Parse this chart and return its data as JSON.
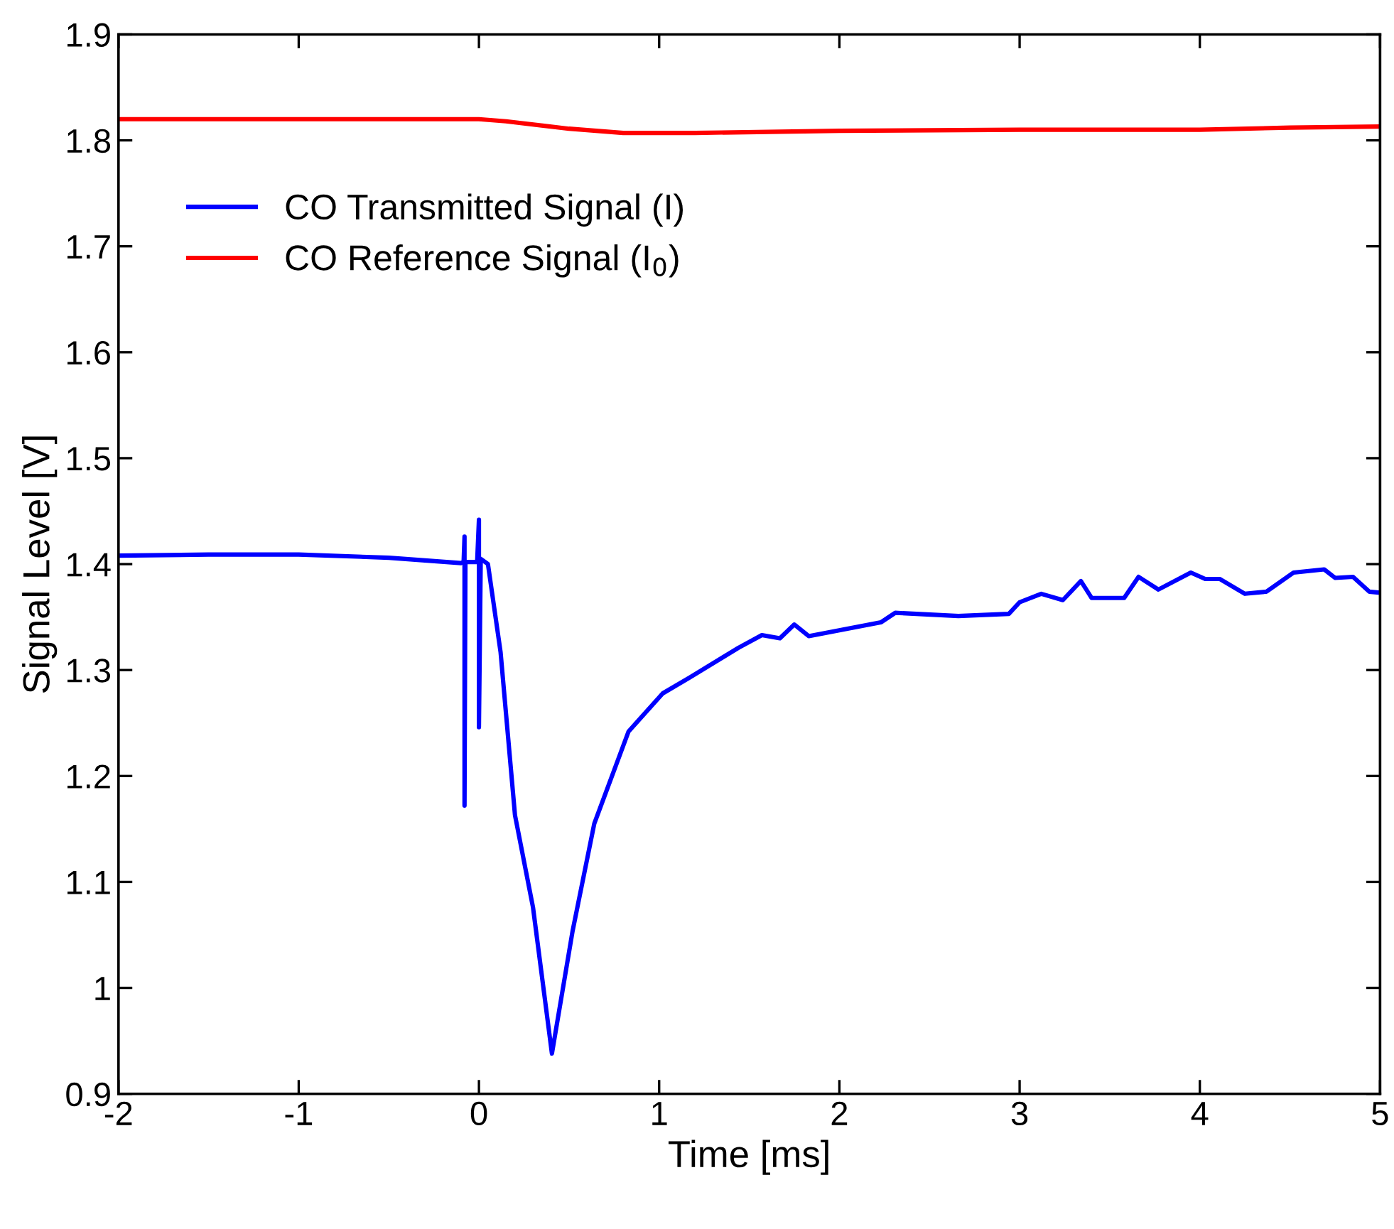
{
  "chart_data": {
    "type": "line",
    "xlabel": "Time [ms]",
    "ylabel": "Signal Level [V]",
    "xlim": [
      -2,
      5
    ],
    "xticks": [
      -2,
      -1,
      0,
      1,
      2,
      3,
      4,
      5
    ],
    "ylim": [
      0.9,
      1.9
    ],
    "yticks": [
      0.9,
      1,
      1.1,
      1.2,
      1.3,
      1.4,
      1.5,
      1.6,
      1.7,
      1.8,
      1.9
    ],
    "grid": false,
    "legend": "top left",
    "marker": "none",
    "line_style": "solid",
    "series": [
      {
        "name": "CO Transmitted Signal (I)",
        "color": "#0000ff",
        "x": [
          -2,
          -1.5,
          -1,
          -0.5,
          -0.1,
          -0.085,
          -0.08,
          -0.08,
          -0.075,
          -0.01,
          0,
          0,
          0.01,
          0.05,
          0.12,
          0.2,
          0.3,
          0.405,
          0.52,
          0.64,
          0.83,
          1.02,
          1.17,
          1.44,
          1.57,
          1.67,
          1.75,
          1.83,
          2.23,
          2.31,
          2.66,
          2.94,
          3.0,
          3.12,
          3.24,
          3.34,
          3.4,
          3.58,
          3.66,
          3.77,
          3.95,
          4.03,
          4.11,
          4.25,
          4.37,
          4.52,
          4.69,
          4.75,
          4.85,
          4.94,
          5
        ],
        "values": [
          1.408,
          1.409,
          1.409,
          1.406,
          1.401,
          1.402,
          1.426,
          1.172,
          1.402,
          1.402,
          1.442,
          1.246,
          1.405,
          1.4,
          1.317,
          1.163,
          1.076,
          0.938,
          1.054,
          1.155,
          1.242,
          1.278,
          1.293,
          1.321,
          1.333,
          1.33,
          1.343,
          1.332,
          1.345,
          1.354,
          1.351,
          1.353,
          1.364,
          1.372,
          1.366,
          1.384,
          1.368,
          1.368,
          1.388,
          1.376,
          1.392,
          1.386,
          1.386,
          1.372,
          1.374,
          1.392,
          1.395,
          1.387,
          1.388,
          1.374,
          1.373
        ]
      },
      {
        "name": "CO Reference Signal (I$_{0}$)",
        "color": "#ff0000",
        "x": [
          -2,
          -1,
          0,
          0.15,
          0.5,
          0.8,
          1.2,
          2,
          3,
          4,
          4.5,
          5
        ],
        "values": [
          1.82,
          1.82,
          1.82,
          1.818,
          1.811,
          1.807,
          1.807,
          1.809,
          1.81,
          1.81,
          1.812,
          1.813
        ]
      }
    ]
  }
}
